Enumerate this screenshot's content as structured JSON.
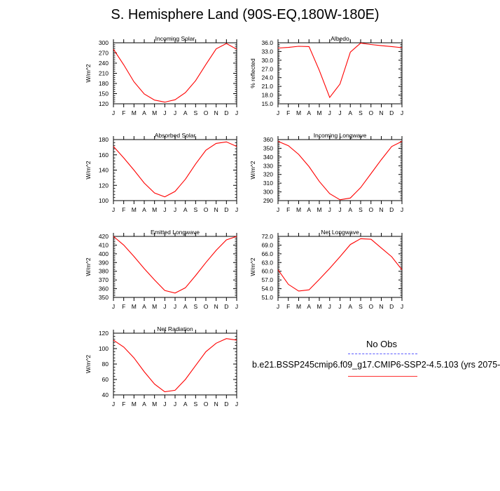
{
  "figure": {
    "title": "S. Hemisphere Land (90S-EQ,180W-180E)",
    "legend": {
      "title": "No Obs",
      "model_label": "b.e21.BSSP245cmip6.f09_g17.CMIP6-SSP2-4.5.103 (yrs 2075-"
    },
    "colors": {
      "model": "#ff0000",
      "obs": "#5a5aff"
    }
  },
  "chart_data": [
    {
      "type": "line",
      "title": "Incoming Solar",
      "ylabel": "W/m^2",
      "categories": [
        "J",
        "F",
        "M",
        "A",
        "M",
        "J",
        "J",
        "A",
        "S",
        "O",
        "N",
        "D",
        "J"
      ],
      "ylim": [
        120,
        300
      ],
      "yticks": [
        "120",
        "150",
        "180",
        "210",
        "240",
        "270",
        "300"
      ],
      "series": [
        {
          "name": "model",
          "values": [
            281,
            235,
            185,
            149,
            131,
            125,
            132,
            153,
            188,
            236,
            282,
            298,
            281
          ]
        }
      ]
    },
    {
      "type": "line",
      "title": "Albedo",
      "ylabel": "% reflected",
      "categories": [
        "J",
        "F",
        "M",
        "A",
        "M",
        "J",
        "J",
        "A",
        "S",
        "O",
        "N",
        "D",
        "J"
      ],
      "ylim": [
        15,
        36
      ],
      "yticks": [
        "15.0",
        "18.0",
        "21.0",
        "24.0",
        "27.0",
        "30.0",
        "33.0",
        "36.0"
      ],
      "series": [
        {
          "name": "model",
          "values": [
            34.2,
            34.4,
            34.8,
            34.7,
            26.5,
            17.2,
            21.8,
            32.8,
            35.9,
            35.4,
            35.0,
            34.7,
            34.3
          ]
        }
      ]
    },
    {
      "type": "line",
      "title": "Absorbed Solar",
      "ylabel": "W/m^2",
      "categories": [
        "J",
        "F",
        "M",
        "A",
        "M",
        "J",
        "J",
        "A",
        "S",
        "O",
        "N",
        "D",
        "J"
      ],
      "ylim": [
        100,
        180
      ],
      "yticks": [
        "100",
        "120",
        "140",
        "160",
        "180"
      ],
      "series": [
        {
          "name": "model",
          "values": [
            171,
            156,
            140,
            123,
            110,
            105,
            112,
            128,
            148,
            166,
            175,
            177,
            171
          ]
        }
      ]
    },
    {
      "type": "line",
      "title": "Incoming Longwave",
      "ylabel": "W/m^2",
      "categories": [
        "J",
        "F",
        "M",
        "A",
        "M",
        "J",
        "J",
        "A",
        "S",
        "O",
        "N",
        "D",
        "J"
      ],
      "ylim": [
        290,
        360
      ],
      "yticks": [
        "290",
        "300",
        "310",
        "320",
        "330",
        "340",
        "350",
        "360"
      ],
      "series": [
        {
          "name": "model",
          "values": [
            358,
            353,
            343,
            329,
            312,
            298,
            291,
            293,
            305,
            321,
            337,
            352,
            358
          ]
        }
      ]
    },
    {
      "type": "line",
      "title": "Emitted Longwave",
      "ylabel": "W/m^2",
      "categories": [
        "J",
        "F",
        "M",
        "A",
        "M",
        "J",
        "J",
        "A",
        "S",
        "O",
        "N",
        "D",
        "J"
      ],
      "ylim": [
        350,
        420
      ],
      "yticks": [
        "350",
        "360",
        "370",
        "380",
        "390",
        "400",
        "410",
        "420"
      ],
      "series": [
        {
          "name": "model",
          "values": [
            420,
            410,
            397,
            383,
            370,
            358,
            355,
            361,
            375,
            390,
            404,
            416,
            420
          ]
        }
      ]
    },
    {
      "type": "line",
      "title": "Net Longwave",
      "ylabel": "W/m^2",
      "categories": [
        "J",
        "F",
        "M",
        "A",
        "M",
        "J",
        "J",
        "A",
        "S",
        "O",
        "N",
        "D",
        "J"
      ],
      "ylim": [
        51,
        72
      ],
      "yticks": [
        "51.0",
        "54.0",
        "57.0",
        "60.0",
        "63.0",
        "66.0",
        "69.0",
        "72.0"
      ],
      "series": [
        {
          "name": "model",
          "values": [
            60.5,
            55.5,
            53.2,
            53.6,
            57.2,
            61.0,
            65.0,
            69.2,
            71.2,
            71.0,
            68.0,
            65.0,
            60.5
          ]
        }
      ]
    },
    {
      "type": "line",
      "title": "Net Radiation",
      "ylabel": "W/m^2",
      "categories": [
        "J",
        "F",
        "M",
        "A",
        "M",
        "J",
        "J",
        "A",
        "S",
        "O",
        "N",
        "D",
        "J"
      ],
      "ylim": [
        40,
        120
      ],
      "yticks": [
        "40",
        "60",
        "80",
        "100",
        "120"
      ],
      "series": [
        {
          "name": "model",
          "values": [
            111,
            102,
            88,
            70,
            54,
            44,
            46,
            60,
            78,
            96,
            107,
            113,
            111
          ]
        }
      ]
    }
  ]
}
